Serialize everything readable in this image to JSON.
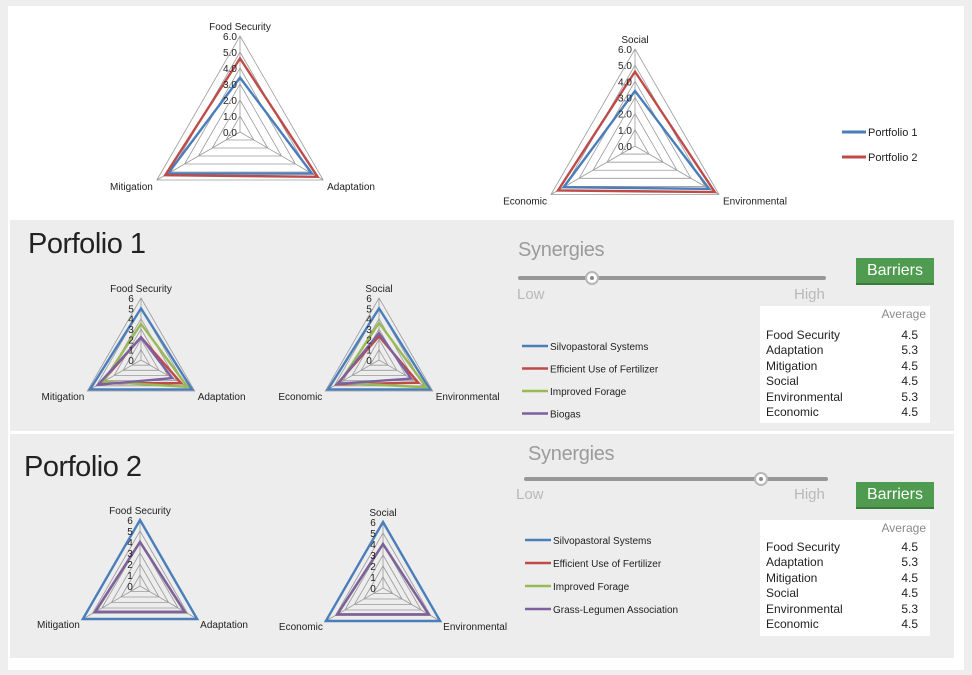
{
  "top": {
    "legend": [
      {
        "name": "Portfolio 1",
        "color": "#4a7ebb"
      },
      {
        "name": "Portfolio 2",
        "color": "#be4b48"
      }
    ]
  },
  "chart_data": [
    {
      "type": "radar",
      "axes": [
        "Food Security",
        "Adaptation",
        "Mitigation"
      ],
      "ticks": [
        "0.0",
        "1.0",
        "2.0",
        "3.0",
        "4.0",
        "5.0",
        "6.0"
      ],
      "rmax": 6,
      "series": [
        {
          "name": "Portfolio 1",
          "color": "#4a7ebb",
          "values": [
            3.4,
            5.2,
            5.2
          ]
        },
        {
          "name": "Portfolio 2",
          "color": "#be4b48",
          "values": [
            4.6,
            5.6,
            5.4
          ]
        }
      ]
    },
    {
      "type": "radar",
      "axes": [
        "Social",
        "Environmental",
        "Economic"
      ],
      "ticks": [
        "0.0",
        "1.0",
        "2.0",
        "3.0",
        "4.0",
        "5.0",
        "6.0"
      ],
      "rmax": 6,
      "series": [
        {
          "name": "Portfolio 1",
          "color": "#4a7ebb",
          "values": [
            3.4,
            5.3,
            5.1
          ]
        },
        {
          "name": "Portfolio 2",
          "color": "#be4b48",
          "values": [
            4.6,
            5.7,
            5.5
          ]
        }
      ]
    },
    {
      "type": "radar",
      "axes": [
        "Food Security",
        "Adaptation",
        "Mitigation"
      ],
      "ticks": [
        "0",
        "1",
        "2",
        "3",
        "4",
        "5",
        "6"
      ],
      "rmax": 6,
      "series": [
        {
          "name": "Silvopastoral Systems",
          "color": "#4a7ebb",
          "values": [
            5.0,
            5.7,
            5.7
          ]
        },
        {
          "name": "Efficient Use of Fertilizer",
          "color": "#be4b48",
          "values": [
            2.2,
            4.5,
            4.5
          ]
        },
        {
          "name": "Improved Forage",
          "color": "#98b954",
          "values": [
            3.5,
            5.2,
            4.2
          ]
        },
        {
          "name": "Biogas",
          "color": "#7d60a0",
          "values": [
            2.2,
            3.5,
            4.8
          ]
        }
      ]
    },
    {
      "type": "radar",
      "axes": [
        "Social",
        "Environmental",
        "Economic"
      ],
      "ticks": [
        "0",
        "1",
        "2",
        "3",
        "4",
        "5",
        "6"
      ],
      "rmax": 6,
      "series": [
        {
          "name": "Silvopastoral Systems",
          "color": "#4a7ebb",
          "values": [
            5.0,
            5.7,
            5.7
          ]
        },
        {
          "name": "Efficient Use of Fertilizer",
          "color": "#be4b48",
          "values": [
            2.3,
            4.4,
            4.7
          ]
        },
        {
          "name": "Improved Forage",
          "color": "#98b954",
          "values": [
            3.6,
            5.3,
            4.4
          ]
        },
        {
          "name": "Biogas",
          "color": "#7d60a0",
          "values": [
            2.6,
            3.6,
            4.6
          ]
        }
      ]
    },
    {
      "type": "radar",
      "axes": [
        "Food Security",
        "Adaptation",
        "Mitigation"
      ],
      "ticks": [
        "0",
        "1",
        "2",
        "3",
        "4",
        "5",
        "6"
      ],
      "rmax": 6,
      "series": [
        {
          "name": "Silvopastoral Systems",
          "color": "#4a7ebb",
          "values": [
            6.0,
            6.0,
            6.0
          ]
        },
        {
          "name": "Efficient Use of Fertilizer",
          "color": "#be4b48",
          "values": [
            4.0,
            4.7,
            4.7
          ]
        },
        {
          "name": "Improved Forage",
          "color": "#98b954",
          "values": [
            4.0,
            4.7,
            4.7
          ]
        },
        {
          "name": "Grass-Legumen Association",
          "color": "#7d60a0",
          "values": [
            4.0,
            4.7,
            4.7
          ]
        }
      ]
    },
    {
      "type": "radar",
      "axes": [
        "Social",
        "Environmental",
        "Economic"
      ],
      "ticks": [
        "0",
        "1",
        "2",
        "3",
        "4",
        "5",
        "6"
      ],
      "rmax": 6,
      "series": [
        {
          "name": "Silvopastoral Systems",
          "color": "#4a7ebb",
          "values": [
            6.0,
            6.0,
            6.0
          ]
        },
        {
          "name": "Efficient Use of Fertilizer",
          "color": "#be4b48",
          "values": [
            4.0,
            4.8,
            4.8
          ]
        },
        {
          "name": "Improved Forage",
          "color": "#98b954",
          "values": [
            4.0,
            4.8,
            4.8
          ]
        },
        {
          "name": "Grass-Legumen Association",
          "color": "#7d60a0",
          "values": [
            4.0,
            4.8,
            4.8
          ]
        }
      ]
    }
  ],
  "portfolio1": {
    "title": "Porfolio 1",
    "synergies_label": "Synergies",
    "low_label": "Low",
    "high_label": "High",
    "synergy_level": 0.24,
    "barriers_label": "Barriers",
    "legend": [
      {
        "name": "Silvopastoral Systems",
        "color": "#4a7ebb"
      },
      {
        "name": "Efficient Use of Fertilizer",
        "color": "#be4b48"
      },
      {
        "name": "Improved Forage",
        "color": "#98b954"
      },
      {
        "name": "Biogas",
        "color": "#7d60a0"
      }
    ],
    "averages_header": "Average",
    "averages": [
      {
        "name": "Food Security",
        "value": "4.5"
      },
      {
        "name": "Adaptation",
        "value": "5.3"
      },
      {
        "name": "Mitigation",
        "value": "4.5"
      },
      {
        "name": "Social",
        "value": "4.5"
      },
      {
        "name": "Environmental",
        "value": "5.3"
      },
      {
        "name": "Economic",
        "value": "4.5"
      }
    ]
  },
  "portfolio2": {
    "title": "Porfolio 2",
    "synergies_label": "Synergies",
    "low_label": "Low",
    "high_label": "High",
    "synergy_level": 0.78,
    "barriers_label": "Barriers",
    "legend": [
      {
        "name": "Silvopastoral Systems",
        "color": "#4a7ebb"
      },
      {
        "name": "Efficient Use of Fertilizer",
        "color": "#be4b48"
      },
      {
        "name": "Improved Forage",
        "color": "#98b954"
      },
      {
        "name": "Grass-Legumen Association",
        "color": "#7d60a0"
      }
    ],
    "averages_header": "Average",
    "averages": [
      {
        "name": "Food Security",
        "value": "4.5"
      },
      {
        "name": "Adaptation",
        "value": "5.3"
      },
      {
        "name": "Mitigation",
        "value": "4.5"
      },
      {
        "name": "Social",
        "value": "4.5"
      },
      {
        "name": "Environmental",
        "value": "5.3"
      },
      {
        "name": "Economic",
        "value": "4.5"
      }
    ]
  }
}
